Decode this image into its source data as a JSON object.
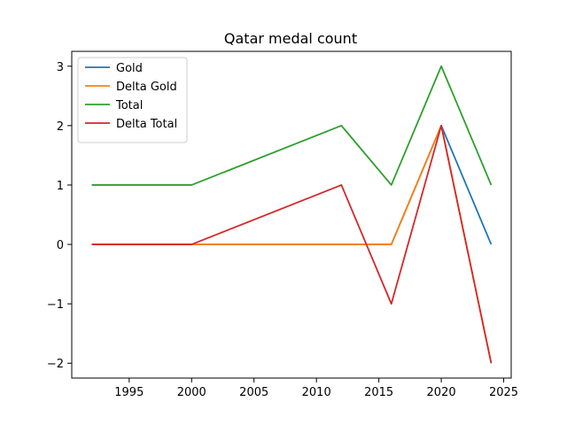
{
  "chart_data": {
    "type": "line",
    "title": "Qatar medal count",
    "xlabel": "",
    "ylabel": "",
    "x": [
      1992,
      2000,
      2012,
      2016,
      2020,
      2024
    ],
    "series": [
      {
        "name": "Gold",
        "color": "#1f77b4",
        "values": [
          0,
          0,
          0,
          0,
          2,
          0
        ]
      },
      {
        "name": "Delta Gold",
        "color": "#ff7f0e",
        "values": [
          0,
          0,
          0,
          0,
          2,
          -2
        ]
      },
      {
        "name": "Total",
        "color": "#2ca02c",
        "values": [
          1,
          1,
          2,
          1,
          3,
          1
        ]
      },
      {
        "name": "Delta Total",
        "color": "#d62728",
        "values": [
          0,
          0,
          1,
          -1,
          2,
          -2
        ]
      }
    ],
    "xlim": [
      1990.4,
      2025.6
    ],
    "ylim": [
      -2.25,
      3.25
    ],
    "x_ticks": [
      1995,
      2000,
      2005,
      2010,
      2015,
      2020,
      2025
    ],
    "x_tick_labels": [
      "1995",
      "2000",
      "2005",
      "2010",
      "2015",
      "2020",
      "2025"
    ],
    "y_ticks": [
      -2,
      -1,
      0,
      1,
      2,
      3
    ],
    "y_tick_labels": [
      "−2",
      "−1",
      "0",
      "1",
      "2",
      "3"
    ],
    "grid": false,
    "legend_position": "upper-left"
  }
}
